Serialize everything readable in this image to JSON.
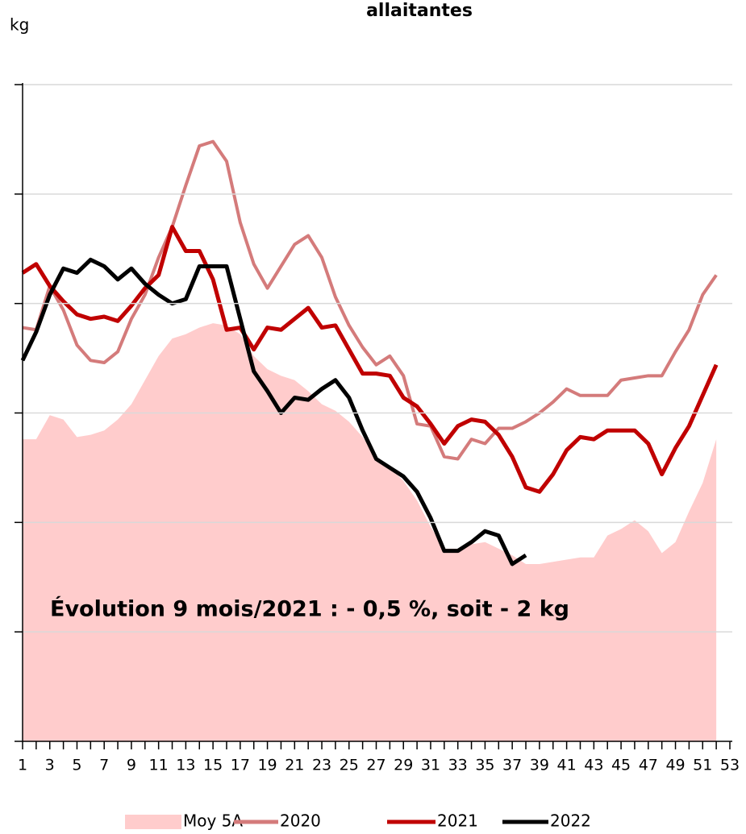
{
  "chart_data": {
    "type": "line",
    "title": "allaitantes",
    "ylabel": "kg",
    "annotation": "Évolution 9 mois/2021 : - 0,5 %, soit - 2 kg",
    "x": [
      1,
      2,
      3,
      4,
      5,
      6,
      7,
      8,
      9,
      10,
      11,
      12,
      13,
      14,
      15,
      16,
      17,
      18,
      19,
      20,
      21,
      22,
      23,
      24,
      25,
      26,
      27,
      28,
      29,
      30,
      31,
      32,
      33,
      34,
      35,
      36,
      37,
      38,
      39,
      40,
      41,
      42,
      43,
      44,
      45,
      46,
      47,
      48,
      49,
      50,
      51,
      52,
      53
    ],
    "xlim": [
      1,
      53
    ],
    "xticks": [
      1,
      3,
      5,
      7,
      9,
      11,
      13,
      15,
      17,
      19,
      21,
      23,
      25,
      27,
      29,
      31,
      33,
      35,
      37,
      39,
      41,
      43,
      45,
      47,
      49,
      51,
      53
    ],
    "ylim": [
      380,
      410
    ],
    "yticks": [
      380,
      385,
      390,
      395,
      400,
      405,
      410
    ],
    "grid": true,
    "legend": "bottom",
    "series": [
      {
        "name": "Moy 5A",
        "kind": "area",
        "color": "#ffcccc",
        "values": [
          393.8,
          393.8,
          394.9,
          394.7,
          393.9,
          394.0,
          394.2,
          394.7,
          395.4,
          396.5,
          397.6,
          398.4,
          398.6,
          398.9,
          399.1,
          399.0,
          398.6,
          397.6,
          397.0,
          396.7,
          396.5,
          396.0,
          395.4,
          395.1,
          394.6,
          393.9,
          393.0,
          392.5,
          391.9,
          391.0,
          389.8,
          388.8,
          388.8,
          389.0,
          389.1,
          388.8,
          388.5,
          388.1,
          388.1,
          388.2,
          388.3,
          388.4,
          388.4,
          389.4,
          389.7,
          390.1,
          389.6,
          388.6,
          389.1,
          390.5,
          391.8,
          393.8,
          null
        ]
      },
      {
        "name": "2020",
        "color": "#d47b7b",
        "values": [
          398.9,
          398.8,
          400.8,
          399.7,
          398.1,
          397.4,
          397.3,
          397.8,
          399.3,
          400.4,
          402.1,
          403.5,
          405.4,
          407.2,
          407.4,
          406.5,
          403.7,
          401.8,
          400.7,
          401.7,
          402.7,
          403.1,
          402.1,
          400.3,
          399.0,
          398.0,
          397.2,
          397.6,
          396.7,
          394.5,
          394.4,
          393.0,
          392.9,
          393.8,
          393.6,
          394.3,
          394.3,
          394.6,
          395.0,
          395.5,
          396.1,
          395.8,
          395.8,
          395.8,
          396.5,
          396.6,
          396.7,
          396.7,
          397.8,
          398.8,
          400.4,
          401.3,
          null
        ]
      },
      {
        "name": "2021",
        "color": "#c00000",
        "values": [
          401.4,
          401.8,
          400.8,
          400.1,
          399.5,
          399.3,
          399.4,
          399.2,
          399.9,
          400.7,
          401.3,
          403.5,
          402.4,
          402.4,
          401.1,
          398.8,
          398.9,
          397.9,
          398.9,
          398.8,
          399.3,
          399.8,
          398.9,
          399.0,
          397.9,
          396.8,
          396.8,
          396.7,
          395.7,
          395.3,
          394.5,
          393.6,
          394.4,
          394.7,
          394.6,
          394.0,
          393.0,
          391.6,
          391.4,
          392.2,
          393.3,
          393.9,
          393.8,
          394.2,
          394.2,
          394.2,
          393.6,
          392.2,
          393.4,
          394.4,
          395.8,
          397.2,
          null
        ]
      },
      {
        "name": "2022",
        "color": "#000000",
        "values": [
          397.4,
          398.7,
          400.4,
          401.6,
          401.4,
          402.0,
          401.7,
          401.1,
          401.6,
          400.9,
          400.4,
          400.0,
          400.2,
          401.7,
          401.7,
          401.7,
          399.3,
          396.9,
          396.0,
          395.0,
          395.7,
          395.6,
          396.1,
          396.5,
          395.7,
          394.2,
          392.9,
          392.5,
          392.1,
          391.4,
          390.2,
          388.7,
          388.7,
          389.1,
          389.6,
          389.4,
          388.1,
          388.5,
          null,
          null,
          null,
          null,
          null,
          null,
          null,
          null,
          null,
          null,
          null,
          null,
          null,
          null,
          null
        ]
      }
    ]
  }
}
